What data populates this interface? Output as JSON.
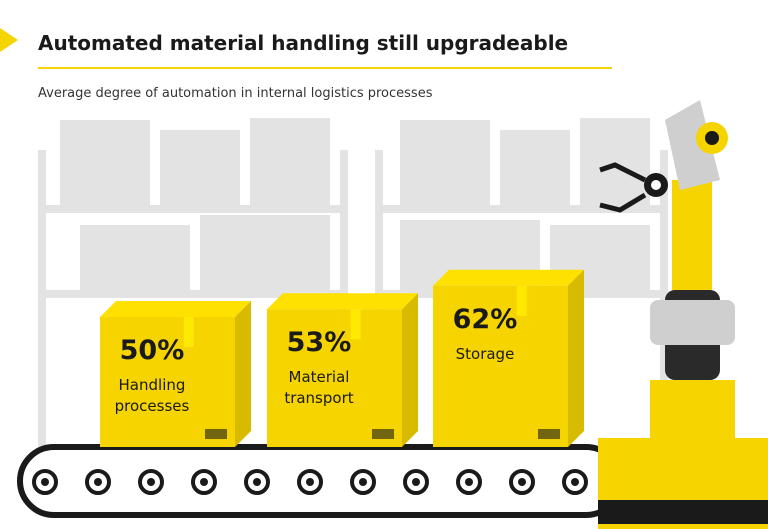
{
  "chart_data": {
    "type": "bar",
    "title": "Automated material handling still upgradeable",
    "subtitle": "Average degree of automation in internal logistics processes",
    "categories": [
      "Handling processes",
      "Material transport",
      "Storage"
    ],
    "values": [
      50,
      53,
      62
    ],
    "value_labels": [
      "50%",
      "53%",
      "62%"
    ],
    "color": "#f5d400"
  }
}
